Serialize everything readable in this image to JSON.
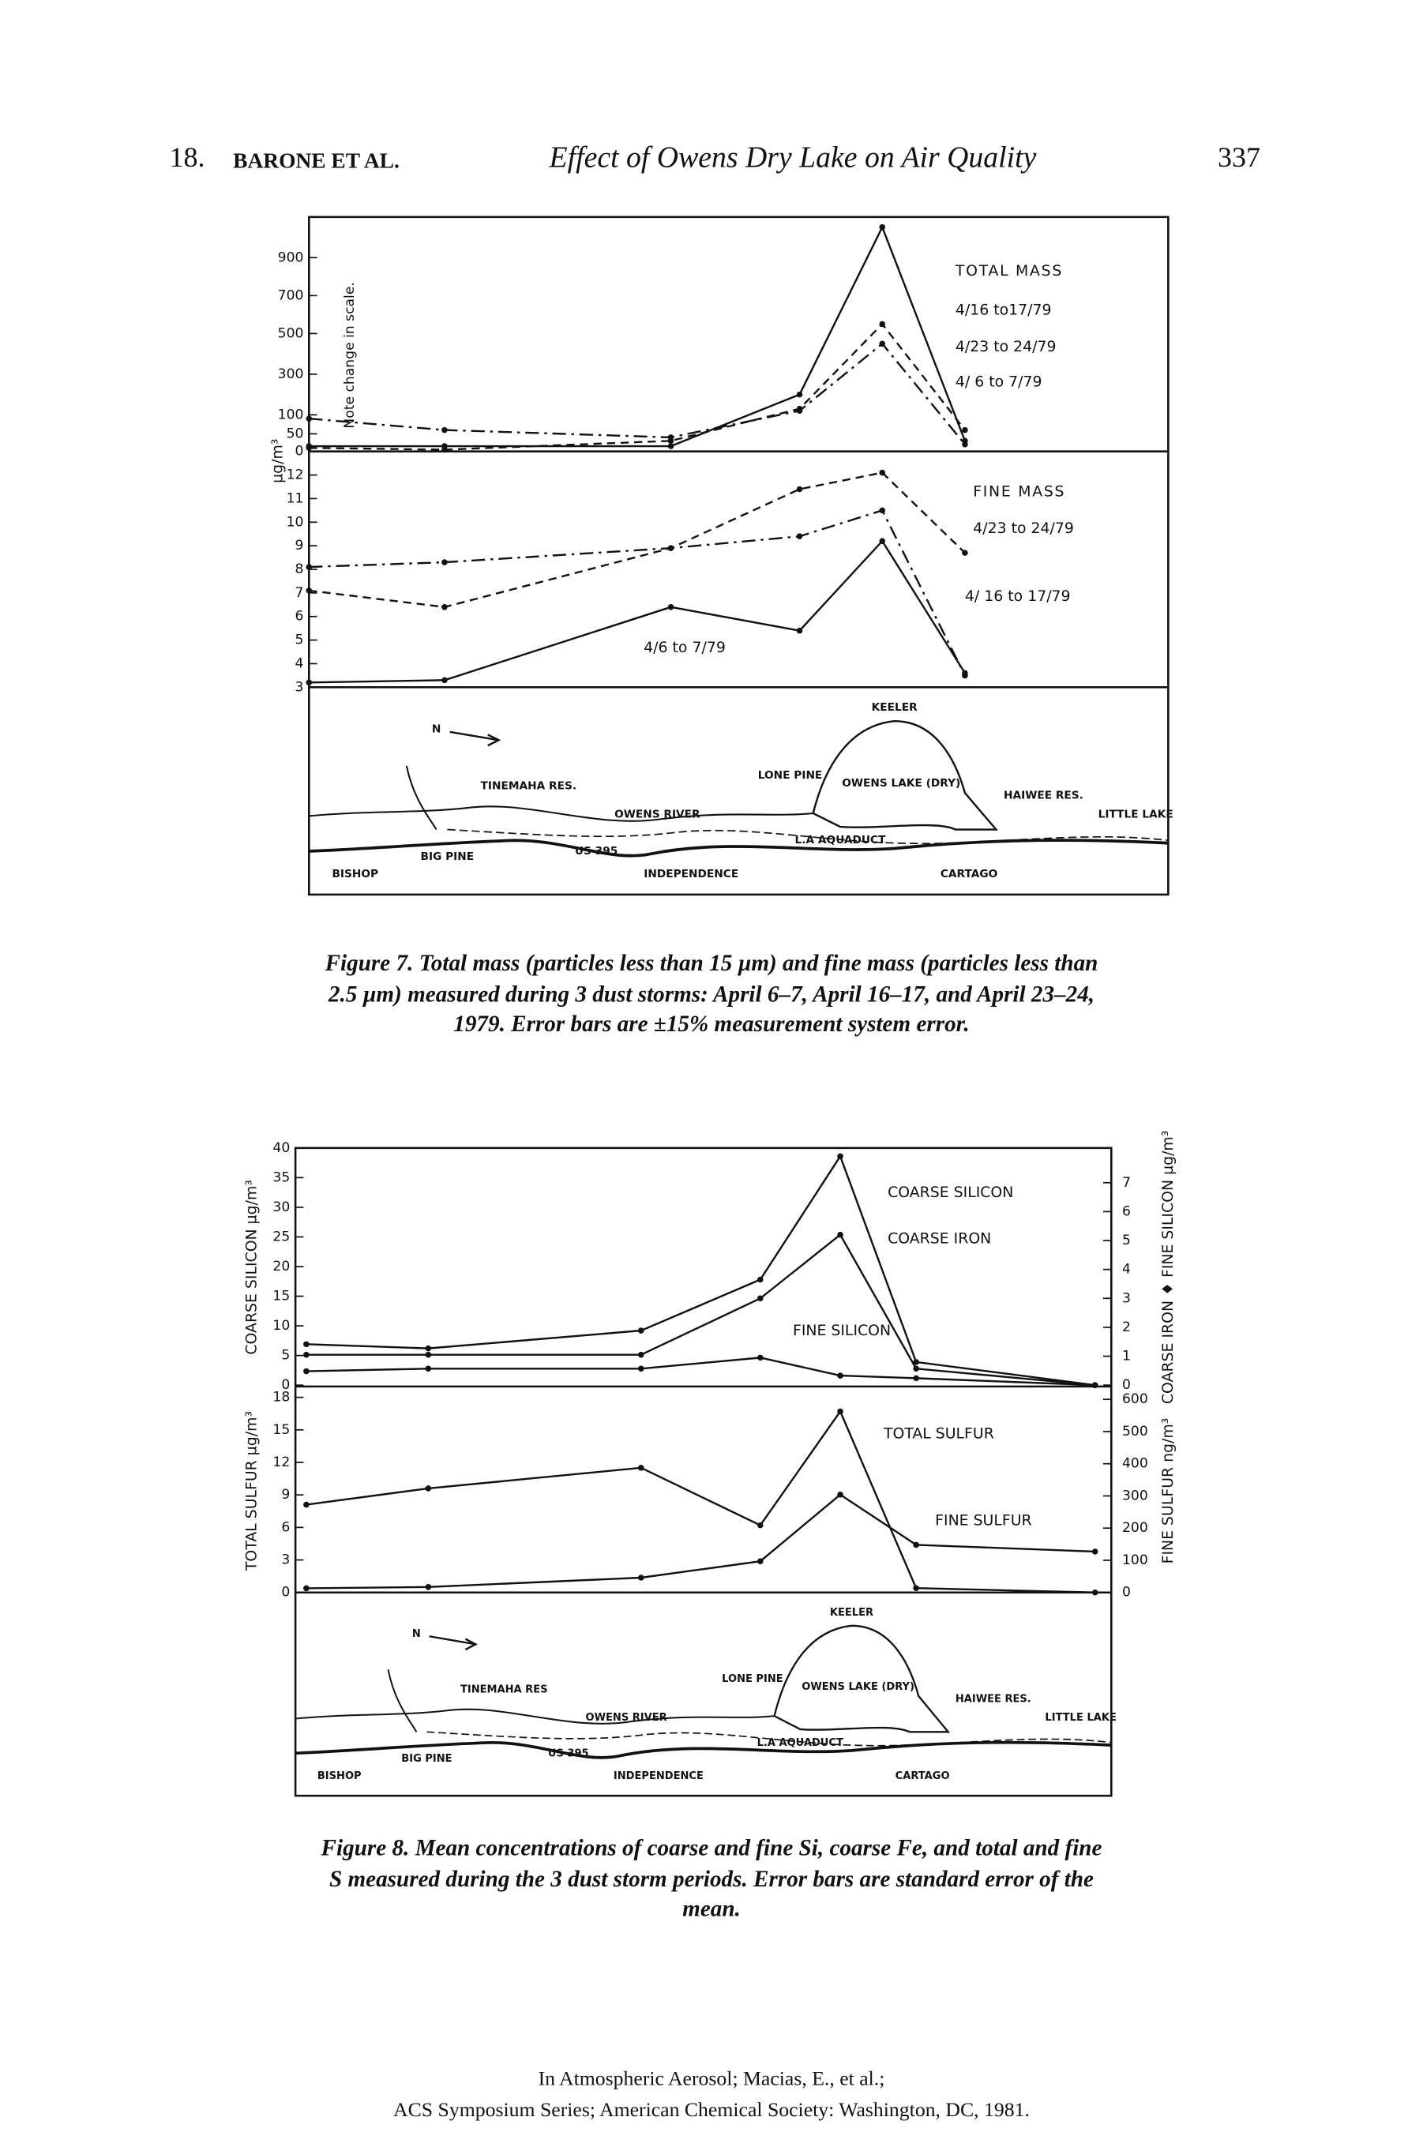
{
  "header": {
    "chapter": "18.",
    "authors": "BARONE ET AL.",
    "title": "Effect of Owens Dry Lake on Air Quality",
    "page": "337"
  },
  "chart_data": [
    {
      "type": "line",
      "title": "TOTAL MASS",
      "ylabel": "µg/m³",
      "annotation": "Note change in scale.",
      "categories": [
        null,
        null,
        null,
        null,
        null,
        null
      ],
      "series": [
        {
          "name": "4/16 to17/79",
          "style": "solid",
          "color": "#111111",
          "values": [
            15,
            15,
            15,
            200,
            1050,
            30
          ]
        },
        {
          "name": "4/23 to 24/79",
          "style": "dashed",
          "color": "#111111",
          "values": [
            10,
            5,
            30,
            130,
            550,
            60
          ]
        },
        {
          "name": "4/ 6 to 7/79",
          "style": "dashdot",
          "color": "#111111",
          "values": [
            90,
            60,
            40,
            120,
            450,
            20
          ]
        }
      ],
      "ylim": [
        0,
        1100
      ],
      "yticks": [
        0,
        50,
        100,
        300,
        500,
        700,
        900
      ]
    },
    {
      "type": "line",
      "title": "FINE MASS",
      "categories": [
        null,
        null,
        null,
        null,
        null,
        null
      ],
      "series": [
        {
          "name": "4/23 to 24/79",
          "style": "dashed",
          "color": "#111111",
          "values": [
            7.1,
            6.4,
            8.9,
            11.4,
            12.1,
            8.7
          ]
        },
        {
          "name": "4/ 16 to 17/79",
          "style": "dashdot",
          "color": "#111111",
          "values": [
            8.1,
            8.3,
            8.9,
            9.4,
            10.5,
            3.5
          ]
        },
        {
          "name": "4/6 to 7/79",
          "style": "solid",
          "color": "#111111",
          "values": [
            3.2,
            3.3,
            6.4,
            5.4,
            9.2,
            3.6
          ]
        }
      ],
      "ylim": [
        3,
        13
      ],
      "yticks": [
        3,
        4,
        5,
        6,
        7,
        8,
        9,
        10,
        11,
        12
      ]
    },
    {
      "type": "line",
      "ylabel": "COARSE SILICON µg/m³",
      "y2label": "COARSE IRON ♦ FINE SILICON µg/m³",
      "categories": [
        null,
        null,
        null,
        null,
        null,
        null,
        null
      ],
      "series": [
        {
          "name": "COARSE SILICON",
          "style": "solid",
          "color": "#111111",
          "values": [
            6.9,
            6.2,
            9.2,
            17.8,
            38.6,
            3.9,
            0
          ]
        },
        {
          "name": "COARSE IRON",
          "style": "solid",
          "color": "#111111",
          "axis": "y2",
          "values": [
            1.05,
            1.05,
            1.05,
            3.0,
            5.2,
            0.57,
            0
          ]
        },
        {
          "name": "FINE SILICON",
          "style": "solid",
          "color": "#111111",
          "axis": "y2",
          "values": [
            0.48,
            0.57,
            0.57,
            0.95,
            0.33,
            0.24,
            0
          ]
        }
      ],
      "ylim": [
        0,
        40
      ],
      "yticks": [
        0,
        5,
        10,
        15,
        20,
        25,
        30,
        35,
        40
      ],
      "y2lim": [
        0,
        8.2
      ],
      "y2ticks": [
        0,
        1,
        2,
        3,
        4,
        5,
        6,
        7
      ]
    },
    {
      "type": "line",
      "ylabel": "TOTAL SULFUR µg/m³",
      "y2label": "FINE SULFUR ng/m³",
      "categories": [
        null,
        null,
        null,
        null,
        null,
        null,
        null
      ],
      "series": [
        {
          "name": "TOTAL SULFUR",
          "style": "solid",
          "color": "#111111",
          "values": [
            8.1,
            9.6,
            11.5,
            6.2,
            16.7,
            0.4,
            0
          ]
        },
        {
          "name": "FINE SULFUR",
          "style": "solid",
          "color": "#111111",
          "axis": "y2",
          "values": [
            13,
            17,
            46,
            97,
            304,
            148,
            127
          ]
        }
      ],
      "ylim": [
        0,
        19
      ],
      "yticks": [
        0,
        3,
        6,
        9,
        12,
        15,
        18
      ],
      "y2lim": [
        0,
        640
      ],
      "y2ticks": [
        0,
        100,
        200,
        300,
        400,
        500,
        600
      ]
    }
  ],
  "figures": [
    {
      "caption": [
        "Figure 7.  Total mass (particles less than 15 µm) and fine mass (particles less than",
        "2.5 µm) measured during 3 dust storms: April 6–7, April 16–17, and April 23–24,",
        "1979. Error bars are ±15% measurement system error."
      ],
      "map_labels": [
        "N",
        "KEELER",
        "LONE PINE",
        "OWENS LAKE (DRY)",
        "TINEMAHA RES.",
        "OWENS RIVER",
        "HAIWEE RES.",
        "LITTLE LAKE",
        "US 395",
        "L.A AQUADUCT",
        "BIG PINE",
        "BISHOP",
        "INDEPENDENCE",
        "CARTAGO"
      ]
    },
    {
      "caption": [
        "Figure 8.  Mean concentrations of coarse and fine Si, coarse Fe, and total and fine",
        "S measured during the 3 dust storm periods. Error bars are standard error of the",
        "mean."
      ],
      "map_labels": [
        "N",
        "KEELER",
        "LONE PINE",
        "OWENS LAKE (DRY)",
        "TINEMAHA RES",
        "OWENS RIVER",
        "HAIWEE RES.",
        "LITTLE LAKE",
        "US 395",
        "L.A AQUADUCT",
        "BIG PINE",
        "BISHOP",
        "INDEPENDENCE",
        "CARTAGO"
      ]
    }
  ],
  "footer": [
    "In Atmospheric Aerosol; Macias, E., et al.;",
    "ACS Symposium Series; American Chemical Society: Washington, DC, 1981."
  ]
}
